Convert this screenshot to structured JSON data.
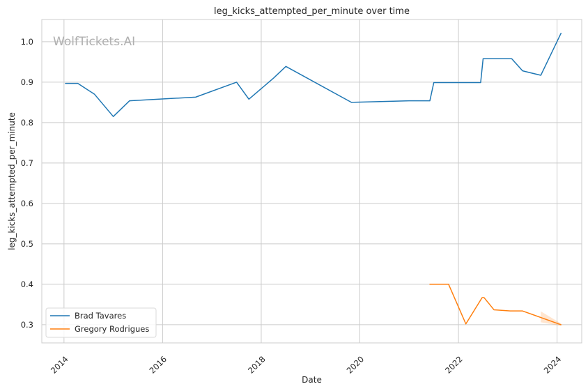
{
  "chart_data": {
    "type": "line",
    "title": "leg_kicks_attempted_per_minute over time",
    "xlabel": "Date",
    "ylabel": "leg_kicks_attempted_per_minute",
    "watermark": "WolfTickets.AI",
    "xlim": [
      2013.55,
      2024.5
    ],
    "ylim": [
      0.255,
      1.055
    ],
    "x_ticks": [
      2014,
      2016,
      2018,
      2020,
      2022,
      2024
    ],
    "x_tick_labels": [
      "2014",
      "2016",
      "2018",
      "2020",
      "2022",
      "2024"
    ],
    "y_ticks": [
      0.3,
      0.4,
      0.5,
      0.6,
      0.7,
      0.8,
      0.9,
      1.0
    ],
    "y_tick_labels": [
      "0.3",
      "0.4",
      "0.5",
      "0.6",
      "0.7",
      "0.8",
      "0.9",
      "1.0"
    ],
    "grid": true,
    "legend_position": "bottom-left",
    "series": [
      {
        "name": "Brad Tavares",
        "color": "#1f77b4",
        "points": [
          [
            2014.03,
            0.897
          ],
          [
            2014.28,
            0.897
          ],
          [
            2014.62,
            0.87
          ],
          [
            2015.0,
            0.815
          ],
          [
            2015.33,
            0.854
          ],
          [
            2016.67,
            0.863
          ],
          [
            2017.5,
            0.9
          ],
          [
            2017.75,
            0.858
          ],
          [
            2018.25,
            0.91
          ],
          [
            2018.5,
            0.939
          ],
          [
            2019.83,
            0.85
          ],
          [
            2021.0,
            0.854
          ],
          [
            2021.42,
            0.854
          ],
          [
            2021.5,
            0.899
          ],
          [
            2022.45,
            0.899
          ],
          [
            2022.5,
            0.958
          ],
          [
            2023.08,
            0.958
          ],
          [
            2023.3,
            0.928
          ],
          [
            2023.67,
            0.917
          ],
          [
            2024.08,
            1.021
          ]
        ]
      },
      {
        "name": "Gregory Rodrigues",
        "color": "#ff7f0e",
        "points": [
          [
            2021.42,
            0.4
          ],
          [
            2021.8,
            0.4
          ],
          [
            2022.15,
            0.302
          ],
          [
            2022.48,
            0.367
          ],
          [
            2022.52,
            0.367
          ],
          [
            2022.72,
            0.337
          ],
          [
            2023.05,
            0.334
          ],
          [
            2023.3,
            0.334
          ],
          [
            2024.08,
            0.3
          ]
        ],
        "confidence_band": {
          "x": [
            2023.67,
            2024.08
          ],
          "upper": [
            0.333,
            0.303
          ],
          "lower": [
            0.306,
            0.297
          ]
        }
      }
    ]
  }
}
